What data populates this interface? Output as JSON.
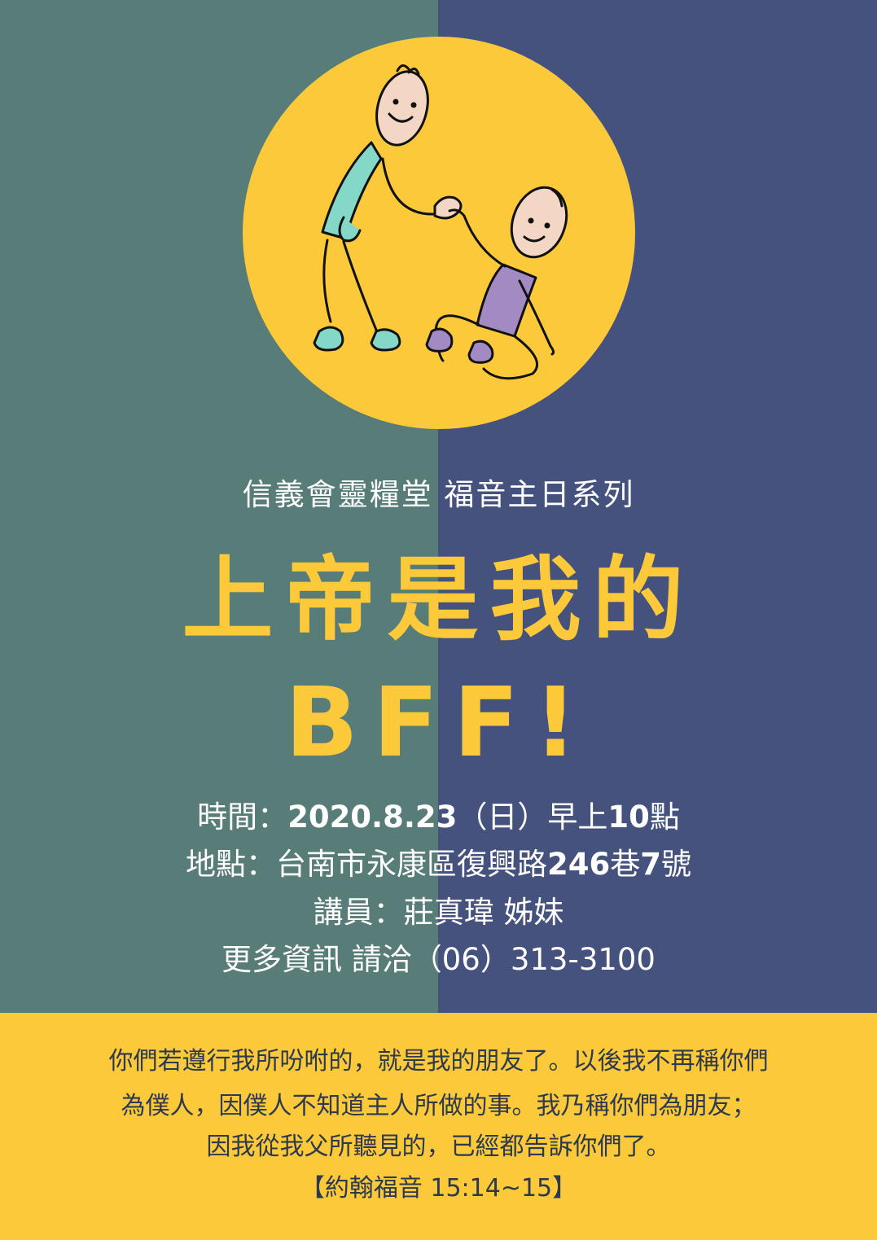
{
  "colors": {
    "left_panel": "#587c78",
    "right_panel": "#46527e",
    "accent_yellow": "#fbc93a",
    "text_white": "#ffffff",
    "verse_text": "#2d3a4e"
  },
  "illustration": {
    "icon": "two-friends-helping-hand-illustration"
  },
  "header": {
    "subtitle": "信義會靈糧堂 福音主日系列"
  },
  "title": {
    "line1": "上帝是我的",
    "line2": "BFF!"
  },
  "details": {
    "time_label": "時間：",
    "time_date": "2020.8.23",
    "time_day": "（日）早上",
    "time_hour": "10",
    "time_suffix": "點",
    "place_label": "地點：",
    "place_text": "台南市永康區復興路",
    "place_lane": "246",
    "place_lane_suffix": "巷",
    "place_no": "7",
    "place_no_suffix": "號",
    "speaker": "講員：莊真瑋 姊妹",
    "contact": "更多資訊 請洽（06）313-3100"
  },
  "verse": {
    "line1": "你們若遵行我所吩咐的，就是我的朋友了。以後我不再稱你們",
    "line2": "為僕人，因僕人不知道主人所做的事。我乃稱你們為朋友；",
    "line3": "因我從我父所聽見的，已經都告訴你們了。",
    "reference": "【約翰福音 15:14~15】"
  }
}
